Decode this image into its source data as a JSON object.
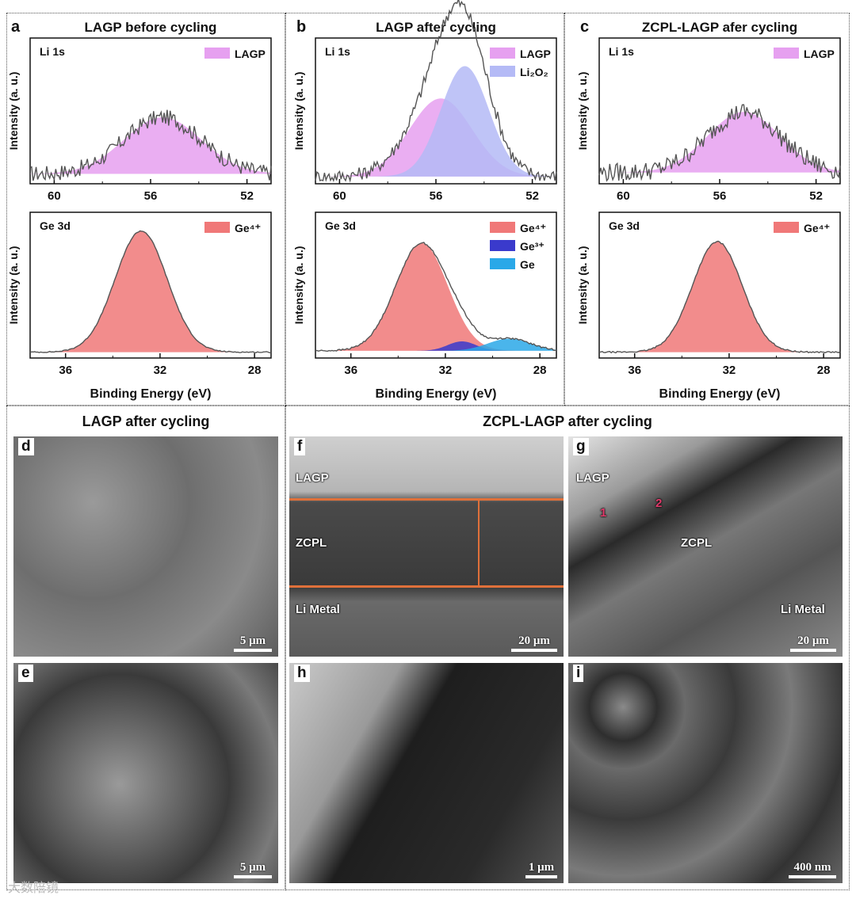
{
  "xps": {
    "panels": [
      {
        "letter": "a",
        "title": "LAGP before cycling",
        "top": {
          "label": "Li 1s",
          "ylabel": "Intensity (a. u.)",
          "xticks": [
            "60",
            "56",
            "52"
          ],
          "xlim": [
            61,
            51
          ],
          "legend": [
            {
              "name": "LAGP",
              "color": "#e6a0f0"
            }
          ],
          "peaks": [
            {
              "center": 55.5,
              "sigma": 1.6,
              "height": 0.42,
              "color": "#e6a0f0"
            }
          ],
          "noise": 0.06,
          "base": 0.05
        },
        "bottom": {
          "label": "Ge 3d",
          "ylabel": "Intensity (a. u.)",
          "xticks": [
            "36",
            "32",
            "28"
          ],
          "xlim": [
            37.5,
            27.3
          ],
          "legend": [
            {
              "name": "Ge⁴⁺",
              "color": "#f07878"
            }
          ],
          "peaks": [
            {
              "center": 32.8,
              "sigma": 1.1,
              "height": 0.9,
              "color": "#f07878"
            }
          ],
          "noise": 0.004,
          "base": 0.02
        },
        "xlabel": ""
      },
      {
        "letter": "b",
        "title": "LAGP after cycling",
        "top": {
          "label": "Li 1s",
          "ylabel": "Intensity (a. u.)",
          "xticks": [
            "60",
            "56",
            "52"
          ],
          "xlim": [
            61,
            51
          ],
          "legend": [
            {
              "name": "LAGP",
              "color": "#e6a0f0"
            },
            {
              "name": "Li₂O₂",
              "color": "#b4baf6"
            }
          ],
          "peaks": [
            {
              "center": 55.8,
              "sigma": 1.3,
              "height": 0.58,
              "color": "#e6a0f0"
            },
            {
              "center": 54.8,
              "sigma": 1.0,
              "height": 0.82,
              "color": "#b4baf6"
            }
          ],
          "noise": 0.05,
          "base": 0.03
        },
        "bottom": {
          "label": "Ge 3d",
          "ylabel": "Intensity (a. u.)",
          "xticks": [
            "36",
            "32",
            "28"
          ],
          "xlim": [
            37.5,
            27.3
          ],
          "legend": [
            {
              "name": "Ge⁴⁺",
              "color": "#f07878"
            },
            {
              "name": "Ge³⁺",
              "color": "#3a3acc"
            },
            {
              "name": "Ge",
              "color": "#2aa8e8"
            }
          ],
          "peaks": [
            {
              "center": 33.0,
              "sigma": 1.1,
              "height": 0.8,
              "color": "#f07878"
            },
            {
              "center": 31.3,
              "sigma": 0.6,
              "height": 0.07,
              "color": "#3a3acc"
            },
            {
              "center": 29.3,
              "sigma": 0.9,
              "height": 0.09,
              "color": "#2aa8e8"
            }
          ],
          "noise": 0.006,
          "base": 0.03
        },
        "xlabel": "Binding Energy (eV)"
      },
      {
        "letter": "c",
        "title": "ZCPL-LAGP afer cycling",
        "top": {
          "label": "Li 1s",
          "ylabel": "Intensity (a. u.)",
          "xticks": [
            "60",
            "56",
            "52"
          ],
          "xlim": [
            61,
            51
          ],
          "legend": [
            {
              "name": "LAGP",
              "color": "#e6a0f0"
            }
          ],
          "peaks": [
            {
              "center": 55.0,
              "sigma": 1.5,
              "height": 0.45,
              "color": "#e6a0f0"
            }
          ],
          "noise": 0.07,
          "base": 0.06
        },
        "bottom": {
          "label": "Ge 3d",
          "ylabel": "Intensity (a. u.)",
          "xticks": [
            "36",
            "32",
            "28"
          ],
          "xlim": [
            37.5,
            27.3
          ],
          "legend": [
            {
              "name": "Ge⁴⁺",
              "color": "#f07878"
            }
          ],
          "peaks": [
            {
              "center": 32.5,
              "sigma": 1.05,
              "height": 0.82,
              "color": "#f07878"
            }
          ],
          "noise": 0.005,
          "base": 0.02
        },
        "xlabel": "Binding Energy (eV)"
      }
    ],
    "first_xlabel": "Binding Energy (eV)"
  },
  "sem": {
    "left_title": "LAGP after cycling",
    "right_title": "ZCPL-LAGP after cycling",
    "images": [
      {
        "letter": "d",
        "scale": "5 μm",
        "labels": []
      },
      {
        "letter": "f",
        "scale": "20 μm",
        "labels": [
          "LAGP",
          "ZCPL",
          "Li Metal"
        ]
      },
      {
        "letter": "g",
        "scale": "20 μm",
        "labels": [
          "LAGP",
          "ZCPL",
          "Li Metal"
        ],
        "marks": [
          "1",
          "2"
        ]
      },
      {
        "letter": "e",
        "scale": "5 μm",
        "labels": []
      },
      {
        "letter": "h",
        "scale": "1 μm",
        "labels": []
      },
      {
        "letter": "i",
        "scale": "400 nm",
        "labels": []
      }
    ]
  },
  "watermark": "大数陪镜"
}
